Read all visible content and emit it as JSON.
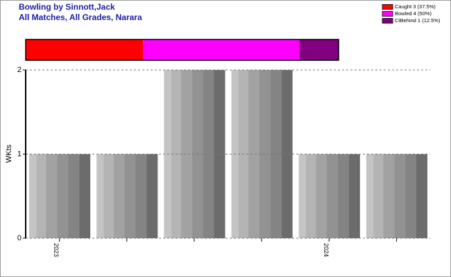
{
  "chart_data": [
    {
      "type": "stacked-hbar",
      "title": "Bowling by Sinnott,Jack",
      "subtitle": "All Matches, All Grades, Narara",
      "legend": "top-right",
      "series": [
        {
          "name": "Caught 3 (37.5%)",
          "color": "#ff0000",
          "values": [
            3
          ]
        },
        {
          "name": "Bowled 4 (50%)",
          "color": "#ff00ff",
          "values": [
            4
          ]
        },
        {
          "name": "CtBehind 1 (12.5%)",
          "color": "#800080",
          "values": [
            1
          ]
        }
      ]
    },
    {
      "type": "bar",
      "ylabel": "WKts",
      "categories": [
        "2023",
        null,
        null,
        null,
        "2024",
        null
      ],
      "values": [
        1,
        1,
        2,
        2,
        1,
        1
      ],
      "ylim": [
        0,
        2
      ],
      "yticks": [
        0,
        1,
        2
      ],
      "grid": true
    }
  ]
}
